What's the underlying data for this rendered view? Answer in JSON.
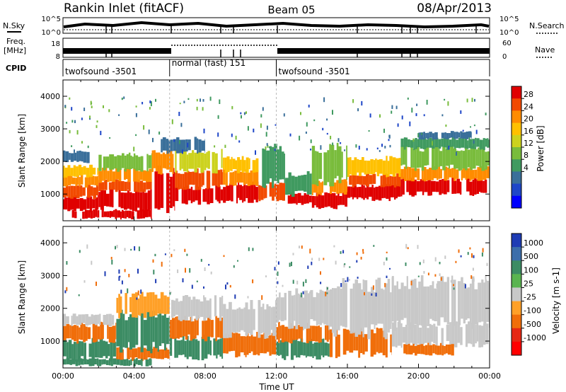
{
  "header": {
    "title": "Rankin Inlet (fitACF)",
    "beam": "Beam 05",
    "date": "08/Apr/2013"
  },
  "top_panels": {
    "nsky_label": "N.Sky",
    "nsearch_label": "N.Search",
    "noise_ticks": [
      "10^5",
      "10^0"
    ],
    "freq_label_line1": "Freq.",
    "freq_label_line2": "[MHz]",
    "freq_ticks": [
      "18",
      "8"
    ],
    "nave_label": "Nave",
    "nave_ticks": [
      "60",
      "0"
    ],
    "cpid_label": "CPID",
    "cpid_segments": [
      {
        "start": 0,
        "end": 6,
        "name": "twofsound -3501"
      },
      {
        "start": 6,
        "end": 12,
        "name": "normal (fast) 151"
      },
      {
        "start": 12,
        "end": 24,
        "name": "twofsound -3501"
      }
    ]
  },
  "power_colorbar": {
    "label": "Power [dB]",
    "ticks": [
      "28",
      "24",
      "20",
      "16",
      "12",
      "8",
      "4"
    ],
    "colors": [
      "#e00000",
      "#f24a00",
      "#ff8c00",
      "#ffc000",
      "#ccd21e",
      "#79bc3c",
      "#409a60",
      "#3a6f9a",
      "#1e46c8",
      "#0000ff"
    ]
  },
  "velocity_colorbar": {
    "label": "Velocity [m s-1]",
    "ticks": [
      "1000",
      "500",
      "100",
      "25",
      "-25",
      "-100",
      "-500",
      "-1000"
    ],
    "colors": [
      "#1e3cb4",
      "#3c6eaa",
      "#3c8c64",
      "#5ab450",
      "#c8c8c8",
      "#ffa028",
      "#f06e0a",
      "#e62814",
      "#ff0000"
    ]
  },
  "chart_data": [
    {
      "type": "heatmap",
      "panel": "power",
      "xlabel": "",
      "ylabel": "Slant Range [km]",
      "xlim": [
        0,
        24
      ],
      "ylim": [
        180,
        4500
      ],
      "yticks": [
        "1000",
        "2000",
        "3000",
        "4000"
      ],
      "bands": [
        {
          "x0": 0,
          "x1": 2,
          "y0": 500,
          "y1": 900,
          "color": "#e00000"
        },
        {
          "x0": 0,
          "x1": 2,
          "y0": 900,
          "y1": 1250,
          "color": "#f24a00"
        },
        {
          "x0": 0,
          "x1": 2,
          "y0": 1250,
          "y1": 1550,
          "color": "#ff8c00"
        },
        {
          "x0": 0,
          "x1": 2,
          "y0": 1550,
          "y1": 1850,
          "color": "#ffc000"
        },
        {
          "x0": 2,
          "x1": 5,
          "y0": 550,
          "y1": 1100,
          "color": "#e00000"
        },
        {
          "x0": 2,
          "x1": 5,
          "y0": 1100,
          "y1": 1400,
          "color": "#f24a00"
        },
        {
          "x0": 2,
          "x1": 5,
          "y0": 1400,
          "y1": 1750,
          "color": "#ff8c00"
        },
        {
          "x0": 2,
          "x1": 5,
          "y0": 1750,
          "y1": 2200,
          "color": "#79bc3c"
        },
        {
          "x0": 5,
          "x1": 6.3,
          "y0": 600,
          "y1": 1700,
          "color": "#e00000"
        },
        {
          "x0": 5,
          "x1": 6.3,
          "y0": 1700,
          "y1": 2300,
          "color": "#ff8c00"
        },
        {
          "x0": 6.3,
          "x1": 9,
          "y0": 750,
          "y1": 1200,
          "color": "#e00000"
        },
        {
          "x0": 6.3,
          "x1": 9,
          "y0": 1200,
          "y1": 1700,
          "color": "#f24a00"
        },
        {
          "x0": 6.3,
          "x1": 9,
          "y0": 1700,
          "y1": 2300,
          "color": "#ccd21e"
        },
        {
          "x0": 9,
          "x1": 11,
          "y0": 800,
          "y1": 1300,
          "color": "#e00000"
        },
        {
          "x0": 9,
          "x1": 11,
          "y0": 1300,
          "y1": 1700,
          "color": "#ff8c00"
        },
        {
          "x0": 9,
          "x1": 11,
          "y0": 1700,
          "y1": 2100,
          "color": "#ffc000"
        },
        {
          "x0": 11,
          "x1": 12.5,
          "y0": 850,
          "y1": 1300,
          "color": "#f24a00"
        },
        {
          "x0": 11,
          "x1": 12.5,
          "y0": 1300,
          "y1": 2400,
          "color": "#409a60"
        },
        {
          "x0": 12.5,
          "x1": 14,
          "y0": 700,
          "y1": 1000,
          "color": "#e00000"
        },
        {
          "x0": 12.5,
          "x1": 14,
          "y0": 1000,
          "y1": 1600,
          "color": "#409a60"
        },
        {
          "x0": 14,
          "x1": 16,
          "y0": 600,
          "y1": 1000,
          "color": "#e00000"
        },
        {
          "x0": 14,
          "x1": 16,
          "y0": 1000,
          "y1": 1400,
          "color": "#ff8c00"
        },
        {
          "x0": 14,
          "x1": 16,
          "y0": 1400,
          "y1": 2400,
          "color": "#79bc3c"
        },
        {
          "x0": 16,
          "x1": 19,
          "y0": 850,
          "y1": 1250,
          "color": "#e00000"
        },
        {
          "x0": 16,
          "x1": 19,
          "y0": 1250,
          "y1": 1600,
          "color": "#f24a00"
        },
        {
          "x0": 16,
          "x1": 19,
          "y0": 1600,
          "y1": 2100,
          "color": "#ffc000"
        },
        {
          "x0": 19,
          "x1": 24,
          "y0": 1000,
          "y1": 1450,
          "color": "#e00000"
        },
        {
          "x0": 19,
          "x1": 24,
          "y0": 1450,
          "y1": 1800,
          "color": "#ff8c00"
        },
        {
          "x0": 19,
          "x1": 24,
          "y0": 1800,
          "y1": 2400,
          "color": "#79bc3c"
        },
        {
          "x0": 19,
          "x1": 24,
          "y0": 2400,
          "y1": 2700,
          "color": "#409a60"
        },
        {
          "x0": 5.5,
          "x1": 8,
          "y0": 2300,
          "y1": 2700,
          "color": "#3a6f9a"
        },
        {
          "x0": 0,
          "x1": 1.5,
          "y0": 2000,
          "y1": 2300,
          "color": "#3a6f9a"
        },
        {
          "x0": 20,
          "x1": 23,
          "y0": 2700,
          "y1": 2900,
          "color": "#3a6f9a"
        },
        {
          "x0": 0.5,
          "x1": 5,
          "y0": 260,
          "y1": 500,
          "color": "#e00000"
        }
      ]
    },
    {
      "type": "heatmap",
      "panel": "velocity",
      "xlabel": "Time UT",
      "ylabel": "Slant Range [km]",
      "xlim": [
        0,
        24
      ],
      "ylim": [
        180,
        4500
      ],
      "xticks": [
        "00:00",
        "04:00",
        "08:00",
        "12:00",
        "16:00",
        "20:00",
        "00:00"
      ],
      "yticks": [
        "1000",
        "2000",
        "3000",
        "4000"
      ],
      "bands": [
        {
          "x0": 0,
          "x1": 3,
          "y0": 450,
          "y1": 1000,
          "color": "#3c8c64"
        },
        {
          "x0": 0,
          "x1": 3,
          "y0": 1000,
          "y1": 1500,
          "color": "#f06e0a"
        },
        {
          "x0": 0,
          "x1": 3,
          "y0": 1500,
          "y1": 1800,
          "color": "#c8c8c8"
        },
        {
          "x0": 3,
          "x1": 6,
          "y0": 450,
          "y1": 800,
          "color": "#f06e0a"
        },
        {
          "x0": 3,
          "x1": 6,
          "y0": 800,
          "y1": 1800,
          "color": "#3c8c64"
        },
        {
          "x0": 3,
          "x1": 6,
          "y0": 1800,
          "y1": 2400,
          "color": "#ffa028"
        },
        {
          "x0": 6,
          "x1": 9,
          "y0": 500,
          "y1": 1100,
          "color": "#3c8c64"
        },
        {
          "x0": 6,
          "x1": 9,
          "y0": 1100,
          "y1": 1700,
          "color": "#f06e0a"
        },
        {
          "x0": 6,
          "x1": 9,
          "y0": 1700,
          "y1": 2300,
          "color": "#c8c8c8"
        },
        {
          "x0": 9,
          "x1": 12,
          "y0": 600,
          "y1": 1200,
          "color": "#f06e0a"
        },
        {
          "x0": 9,
          "x1": 12,
          "y0": 1200,
          "y1": 2100,
          "color": "#c8c8c8"
        },
        {
          "x0": 12,
          "x1": 15,
          "y0": 500,
          "y1": 1000,
          "color": "#3c8c64"
        },
        {
          "x0": 12,
          "x1": 15,
          "y0": 1000,
          "y1": 1500,
          "color": "#f06e0a"
        },
        {
          "x0": 12,
          "x1": 15,
          "y0": 1500,
          "y1": 2500,
          "color": "#c8c8c8"
        },
        {
          "x0": 15,
          "x1": 18.5,
          "y0": 600,
          "y1": 1300,
          "color": "#f06e0a"
        },
        {
          "x0": 15,
          "x1": 18.5,
          "y0": 1300,
          "y1": 2700,
          "color": "#c8c8c8"
        },
        {
          "x0": 18.5,
          "x1": 24,
          "y0": 900,
          "y1": 1500,
          "color": "#c8c8c8"
        },
        {
          "x0": 18.5,
          "x1": 24,
          "y0": 1500,
          "y1": 2800,
          "color": "#c8c8c8"
        },
        {
          "x0": 19,
          "x1": 22,
          "y0": 600,
          "y1": 900,
          "color": "#f06e0a"
        },
        {
          "x0": 0,
          "x1": 5,
          "y0": 260,
          "y1": 450,
          "color": "#3c8c64"
        }
      ]
    }
  ]
}
